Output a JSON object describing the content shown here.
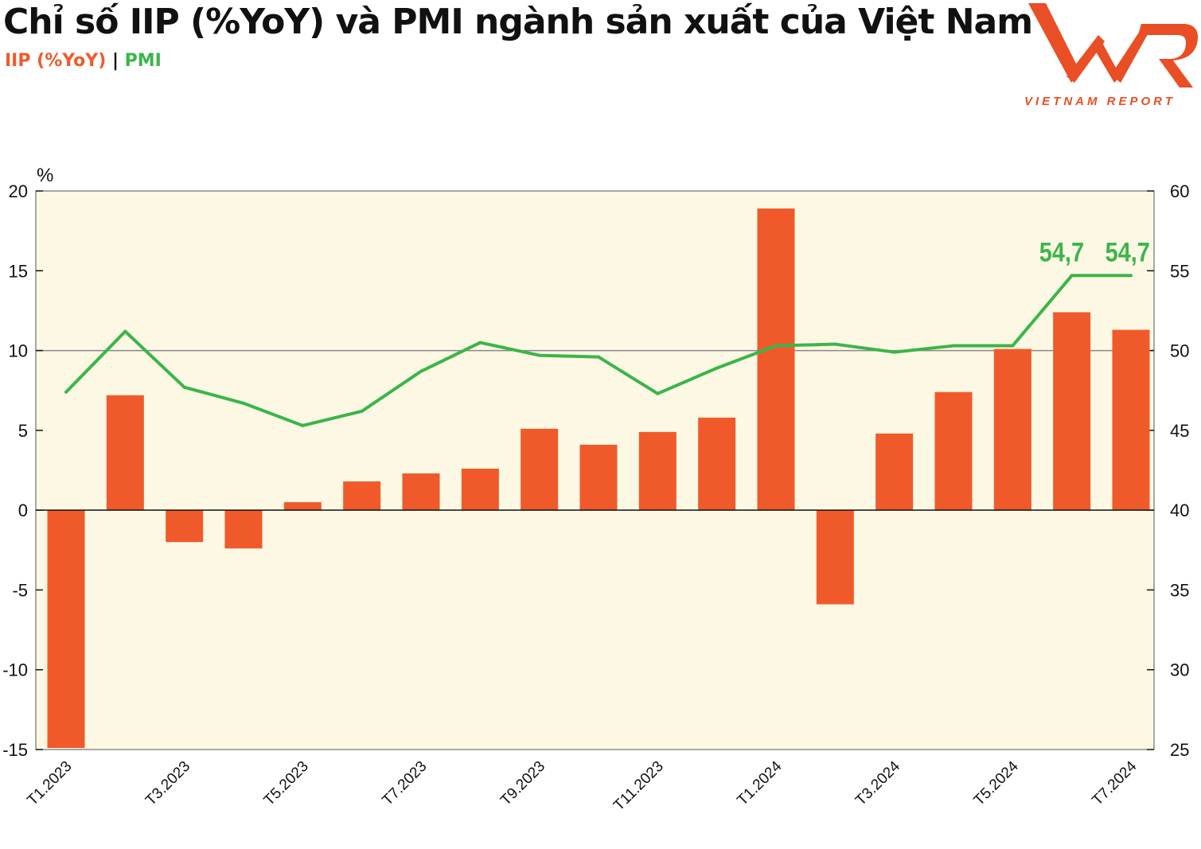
{
  "chart_data": {
    "type": "bar+line",
    "title": "Chỉ số IIP (%YoY) và PMI ngành sản xuất của Việt Nam",
    "legend": [
      {
        "name": "IIP (%YoY)",
        "color": "#f05a2a"
      },
      {
        "name": "PMI",
        "color": "#3bb54a"
      }
    ],
    "legend_placement": "top-left",
    "left_axis_unit": "%",
    "ylim_left": [
      -15,
      20
    ],
    "yticks_left": [
      20,
      15,
      10,
      5,
      0,
      -5,
      -10,
      -15
    ],
    "ylim_right": [
      25,
      60
    ],
    "yticks_right": [
      60,
      55,
      50,
      45,
      40,
      35,
      30,
      25
    ],
    "categories": [
      "T1.2023",
      "T2.2023",
      "T3.2023",
      "T4.2023",
      "T5.2023",
      "T6.2023",
      "T7.2023",
      "T8.2023",
      "T9.2023",
      "T10.2023",
      "T11.2023",
      "T12.2023",
      "T1.2024",
      "T2.2024",
      "T3.2024",
      "T4.2024",
      "T5.2024",
      "T6.2024",
      "T7.2024"
    ],
    "xtick_labels": [
      "T1.2023",
      "",
      "T3.2023",
      "",
      "T5.2023",
      "",
      "T7.2023",
      "",
      "T9.2023",
      "",
      "T11.2023",
      "",
      "T1.2024",
      "",
      "T3.2024",
      "",
      "T5.2024",
      "",
      "T7.2024"
    ],
    "series": [
      {
        "name": "IIP (%YoY)",
        "type": "bar",
        "axis": "left",
        "color": "#f05a2a",
        "values": [
          -14.9,
          7.2,
          -2.0,
          -2.4,
          0.5,
          1.8,
          2.3,
          2.6,
          5.1,
          4.1,
          4.9,
          5.8,
          18.9,
          -5.9,
          4.8,
          7.4,
          10.1,
          12.4,
          11.3
        ]
      },
      {
        "name": "PMI",
        "type": "line",
        "axis": "right",
        "color": "#3bb54a",
        "values": [
          47.4,
          51.2,
          47.7,
          46.7,
          45.3,
          46.2,
          48.7,
          50.5,
          49.7,
          49.6,
          47.3,
          48.9,
          50.3,
          50.4,
          49.9,
          50.3,
          50.3,
          54.7,
          54.7
        ]
      }
    ],
    "annotations": [
      "54,7",
      "54,7"
    ],
    "plot_background": "#fdf8e4",
    "gridline_at_left": 10
  },
  "logo": {
    "text": "VNR",
    "subtitle": "VIETNAM REPORT",
    "color": "#e94e24"
  }
}
